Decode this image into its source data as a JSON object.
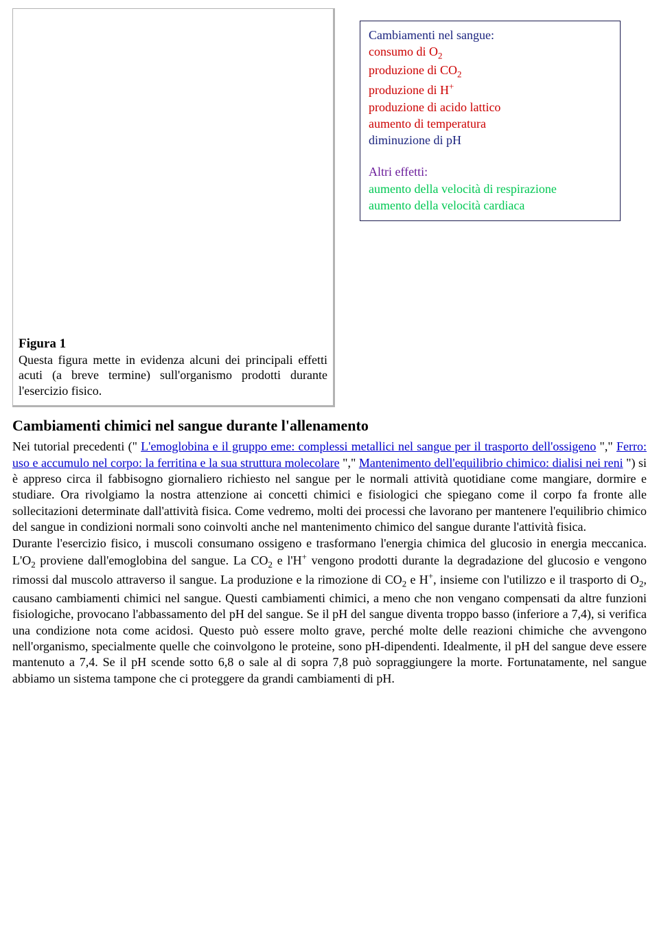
{
  "colors": {
    "navy": "#1a237e",
    "red": "#cc0000",
    "purple": "#6a1b9a",
    "green": "#00c853",
    "link": "#0000cc",
    "border_box": "#1a1a4d",
    "figure_border": "#b3b3b3",
    "background": "#ffffff",
    "text": "#000000"
  },
  "typography": {
    "body_fontsize_pt": 14,
    "heading_fontsize_pt": 17,
    "font_family": "Times New Roman"
  },
  "side_box": {
    "title1": "Cambiamenti nel sangue:",
    "l1_a": "consumo di O",
    "l1_sub": "2",
    "l2_a": "produzione di CO",
    "l2_sub": "2",
    "l3_a": "produzione di H",
    "l3_sup": "+",
    "l4": "produzione di acido lattico",
    "l5": "aumento di temperatura",
    "l6": "diminuzione di pH",
    "title2": "Altri effetti:",
    "l7": "aumento della velocità di respirazione",
    "l8": "aumento della velocità cardiaca"
  },
  "figure": {
    "title": "Figura 1",
    "caption": "Questa figura mette in evidenza alcuni dei principali effetti acuti (a breve termine) sull'organismo prodotti durante l'esercizio fisico."
  },
  "section_heading": "Cambiamenti chimici nel sangue durante l'allenamento",
  "body": {
    "pre1": "Nei tutorial precedenti (\" ",
    "link1": "L'emoglobina e il gruppo eme: complessi metallici nel sangue per il trasporto dell'ossigeno",
    "mid1": " \",\" ",
    "link2": "Ferro: uso e accumulo nel corpo: la ferritina e la sua struttura molecolare",
    "mid2": " \",\" ",
    "link3": "Mantenimento dell'equilibrio chimico: dialisi nei reni",
    "post1": " \") si è appreso circa il fabbisogno giornaliero richiesto nel sangue per le normali attività quotidiane come mangiare, dormire e studiare. Ora rivolgiamo la nostra attenzione ai concetti chimici e fisiologici che spiegano come il corpo fa fronte alle sollecitazioni determinate dall'attività fisica. Come vedremo, molti dei processi che lavorano per mantenere l'equilibrio chimico del sangue in condizioni normali sono coinvolti anche nel mantenimento chimico del sangue durante l'attività fisica.",
    "p2a": "Durante l'esercizio fisico, i muscoli consumano ossigeno e trasformano l'energia chimica del glucosio in energia meccanica. L'O",
    "p2a_sub": "2",
    "p2b": " proviene dall'emoglobina del sangue. La CO",
    "p2b_sub": "2",
    "p2c": " e l'H",
    "p2c_sup": "+",
    "p2d": " vengono prodotti durante la degradazione del glucosio e vengono rimossi dal muscolo attraverso il sangue. La produzione e la rimozione di CO",
    "p2d_sub": "2",
    "p2e": " e H",
    "p2e_sup": "+",
    "p2f": ", insieme con l'utilizzo e il trasporto di O",
    "p2f_sub": "2",
    "p2g": ", causano cambiamenti chimici nel sangue. Questi cambiamenti chimici, a meno che non vengano compensati da altre funzioni fisiologiche, provocano l'abbassamento del pH del sangue. Se il pH del sangue diventa troppo basso (inferiore a 7,4), si verifica una condizione nota come acidosi. Questo può essere molto grave, perché molte delle reazioni chimiche che avvengono nell'organismo, specialmente quelle che coinvolgono le proteine, sono pH-dipendenti. Idealmente, il pH del sangue deve essere mantenuto a 7,4. Se il pH scende sotto 6,8 o sale al di sopra 7,8 può sopraggiungere la morte. Fortunatamente, nel sangue abbiamo un sistema tampone che ci proteggere da grandi cambiamenti di pH."
  }
}
